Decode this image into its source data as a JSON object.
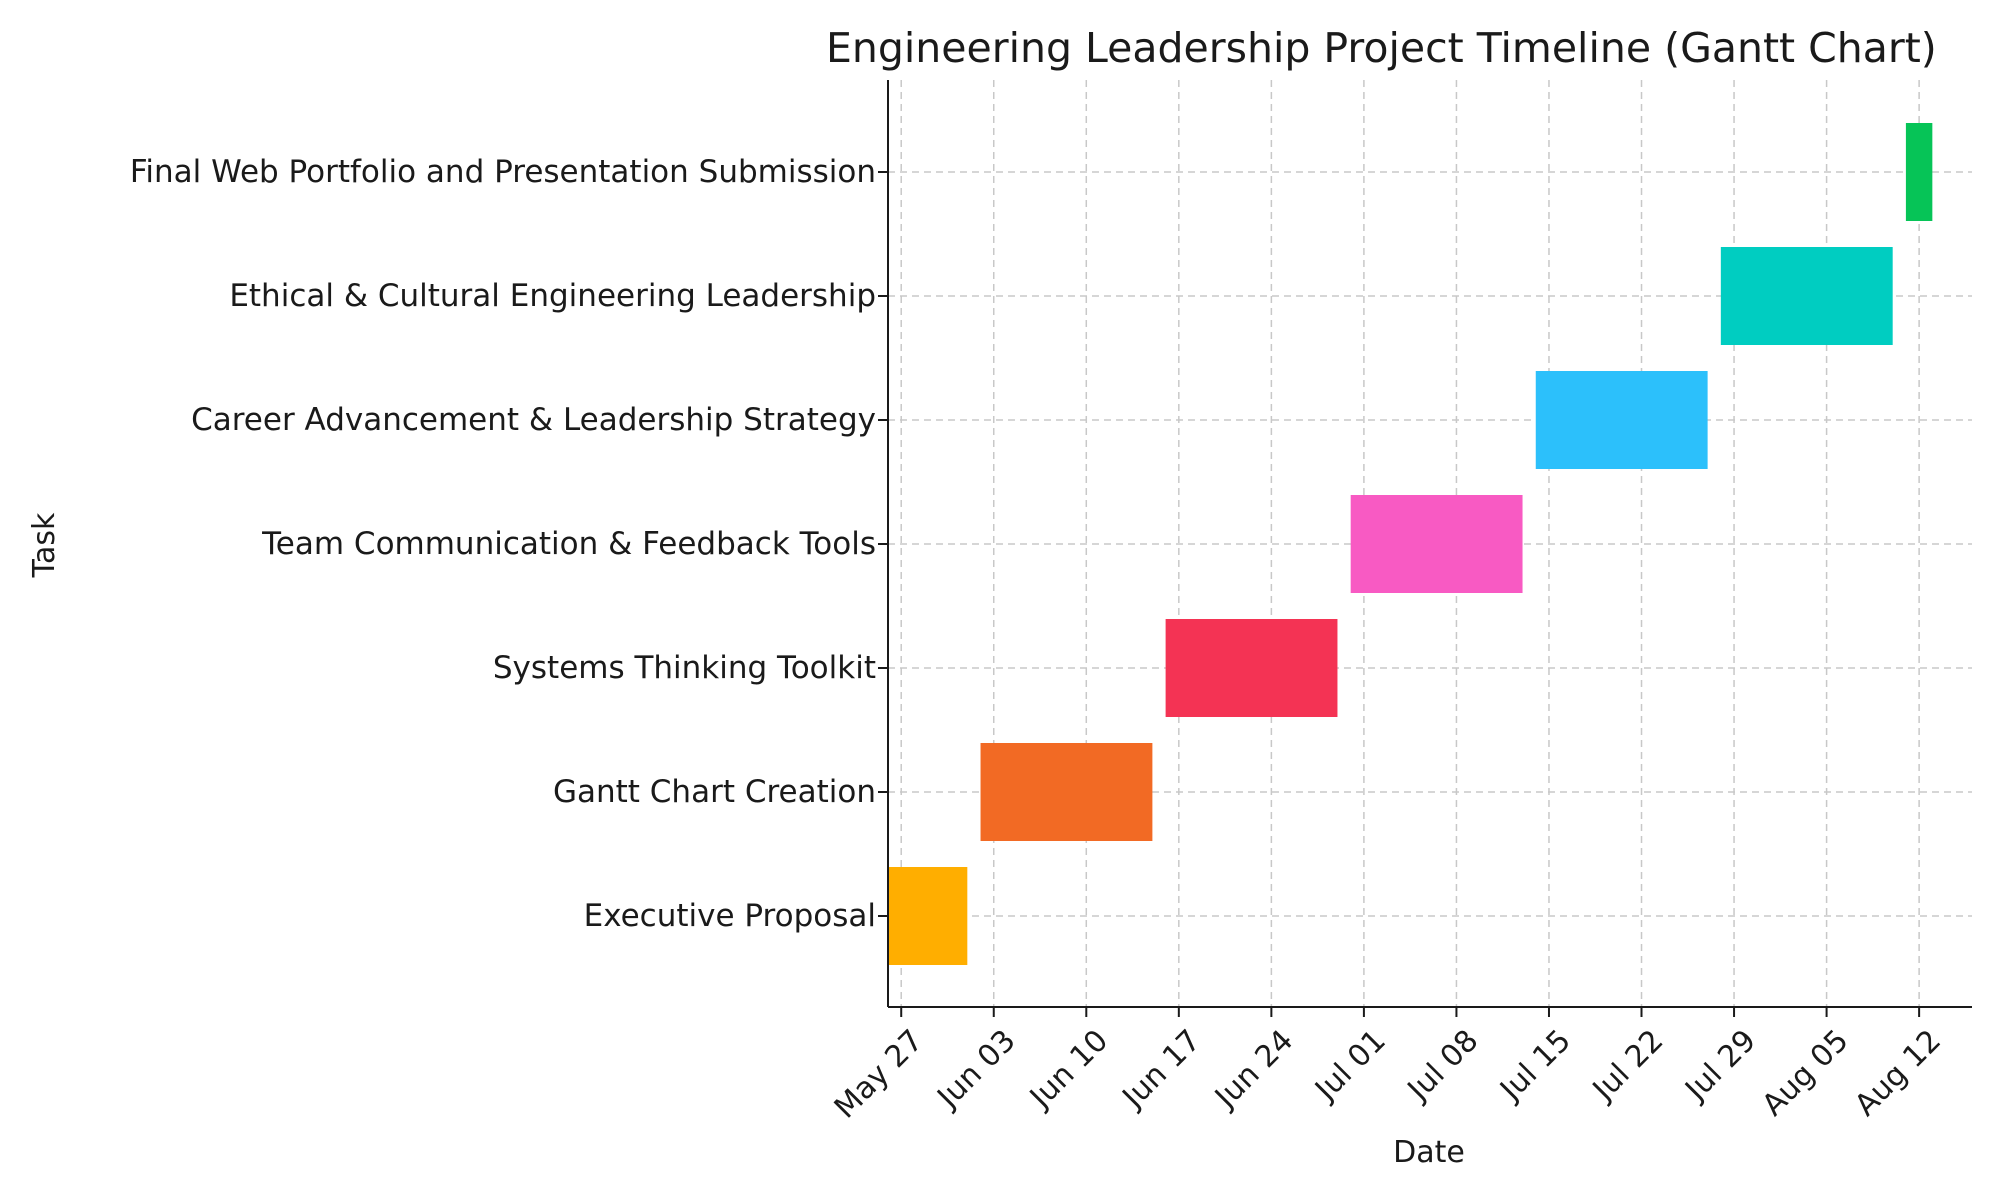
{
  "chart_data": {
    "type": "gantt",
    "title": "Engineering Leadership Project Timeline (Gantt Chart)",
    "xlabel": "Date",
    "ylabel": "Task",
    "grid": true,
    "x_axis": "date",
    "xlim": [
      "2025-05-26",
      "2025-08-16"
    ],
    "xticks": [
      {
        "date": "2025-05-27",
        "label": "May 27"
      },
      {
        "date": "2025-06-03",
        "label": "Jun 03"
      },
      {
        "date": "2025-06-10",
        "label": "Jun 10"
      },
      {
        "date": "2025-06-17",
        "label": "Jun 17"
      },
      {
        "date": "2025-06-24",
        "label": "Jun 24"
      },
      {
        "date": "2025-07-01",
        "label": "Jul 01"
      },
      {
        "date": "2025-07-08",
        "label": "Jul 08"
      },
      {
        "date": "2025-07-15",
        "label": "Jul 15"
      },
      {
        "date": "2025-07-22",
        "label": "Jul 22"
      },
      {
        "date": "2025-07-29",
        "label": "Jul 29"
      },
      {
        "date": "2025-08-05",
        "label": "Aug 05"
      },
      {
        "date": "2025-08-12",
        "label": "Aug 12"
      }
    ],
    "tasks": [
      {
        "task": "Executive Proposal",
        "start": "2025-05-26",
        "end": "2025-06-01",
        "color": "#ffae00"
      },
      {
        "task": "Gantt Chart Creation",
        "start": "2025-06-02",
        "end": "2025-06-15",
        "color": "#f26a24"
      },
      {
        "task": "Systems Thinking Toolkit",
        "start": "2025-06-16",
        "end": "2025-06-29",
        "color": "#f43354"
      },
      {
        "task": "Team Communication & Feedback Tools",
        "start": "2025-06-30",
        "end": "2025-07-13",
        "color": "#f85ac3"
      },
      {
        "task": "Career Advancement & Leadership Strategy",
        "start": "2025-07-14",
        "end": "2025-07-27",
        "color": "#2cc0fb"
      },
      {
        "task": "Ethical & Cultural Engineering Leadership",
        "start": "2025-07-28",
        "end": "2025-08-10",
        "color": "#00cdc1"
      },
      {
        "task": "Final Web Portfolio and Presentation Submission",
        "start": "2025-08-11",
        "end": "2025-08-13",
        "color": "#06c457"
      }
    ]
  }
}
